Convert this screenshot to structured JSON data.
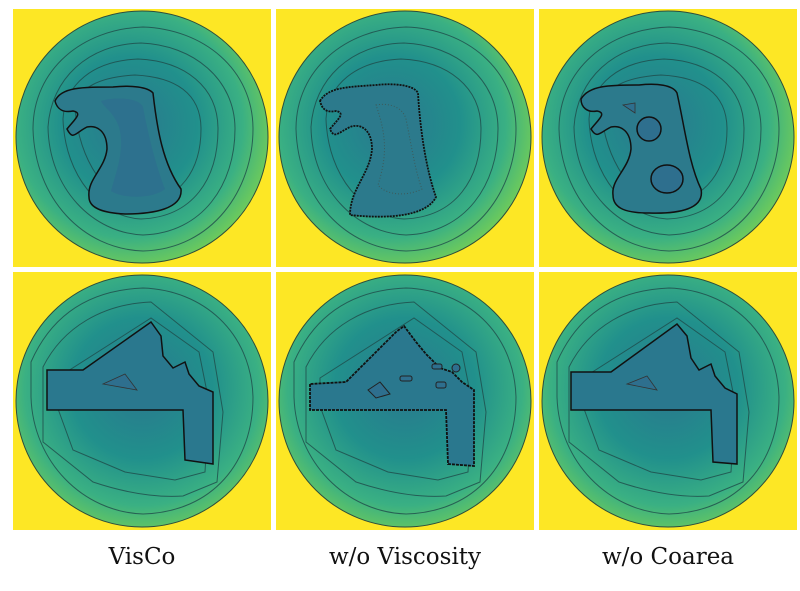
{
  "captions": [
    "VisCo",
    "w/o Viscosity",
    "w/o Coarea"
  ],
  "colors": {
    "background": "#fde725",
    "field_outer": "#7ad151",
    "field_mid": "#3ab083",
    "field_inner": "#21908c",
    "field_core": "#2a788e",
    "contour": "#1a3a3a"
  }
}
